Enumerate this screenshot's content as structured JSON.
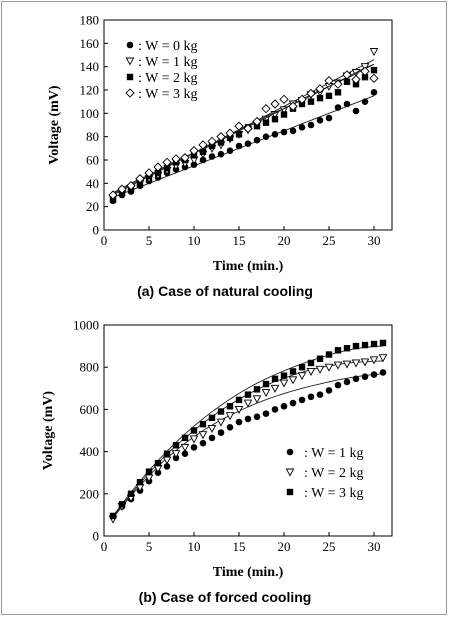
{
  "captions": [
    "(a) Case of natural cooling",
    "(b) Case of forced cooling"
  ],
  "chart_data": [
    {
      "type": "scatter",
      "xlabel": "Time (min.)",
      "ylabel": "Voltage (mV)",
      "xlim": [
        0,
        32
      ],
      "ylim": [
        0,
        180
      ],
      "xticks": [
        0,
        5,
        10,
        15,
        20,
        25,
        30
      ],
      "yticks": [
        0,
        20,
        40,
        60,
        80,
        100,
        120,
        140,
        160,
        180
      ],
      "grid": false,
      "legend_position": "top-left",
      "x": [
        1,
        2,
        3,
        4,
        5,
        6,
        7,
        8,
        9,
        10,
        11,
        12,
        13,
        14,
        15,
        16,
        17,
        18,
        19,
        20,
        21,
        22,
        23,
        24,
        25,
        26,
        27,
        28,
        29,
        30
      ],
      "series": [
        {
          "name": ": W = 0 kg",
          "marker": "filled-circle",
          "values": [
            25,
            30,
            33,
            38,
            42,
            45,
            49,
            52,
            54,
            56,
            60,
            63,
            65,
            68,
            72,
            74,
            77,
            80,
            82,
            84,
            85,
            88,
            90,
            94,
            96,
            105,
            108,
            102,
            110,
            118
          ],
          "fit": [
            28,
            31,
            34,
            37,
            40,
            43,
            46,
            49,
            52,
            55,
            58,
            61,
            64,
            67,
            70,
            73,
            76,
            79,
            82,
            85,
            88,
            91,
            94,
            97,
            100,
            103,
            106,
            109,
            112,
            115
          ]
        },
        {
          "name": ": W = 1 kg",
          "marker": "open-triangle-down",
          "values": [
            27,
            31,
            36,
            40,
            44,
            47,
            51,
            55,
            57,
            60,
            65,
            70,
            73,
            78,
            82,
            86,
            90,
            95,
            99,
            103,
            108,
            111,
            116,
            118,
            123,
            126,
            132,
            135,
            140,
            153
          ],
          "fit": [
            30,
            34,
            38,
            42,
            46,
            50,
            54,
            58,
            62,
            66,
            70,
            74,
            78,
            82,
            86,
            90,
            94,
            98,
            102,
            106,
            110,
            114,
            118,
            122,
            126,
            130,
            134,
            138,
            142,
            146
          ]
        },
        {
          "name": ": W = 2 kg",
          "marker": "filled-square",
          "values": [
            26,
            32,
            35,
            39,
            46,
            49,
            53,
            58,
            60,
            64,
            67,
            72,
            75,
            79,
            82,
            88,
            89,
            92,
            95,
            99,
            104,
            108,
            110,
            113,
            115,
            118,
            127,
            125,
            131,
            137
          ],
          "fit": [
            31,
            35,
            39,
            43,
            46,
            50,
            54,
            58,
            62,
            66,
            69,
            73,
            77,
            81,
            85,
            89,
            92,
            96,
            100,
            104,
            108,
            111,
            115,
            119,
            123,
            127,
            130,
            134,
            138,
            142
          ]
        },
        {
          "name": ": W = 3 kg",
          "marker": "open-diamond",
          "values": [
            30,
            35,
            38,
            44,
            49,
            54,
            58,
            61,
            62,
            68,
            73,
            76,
            80,
            83,
            89,
            87,
            93,
            104,
            108,
            112,
            106,
            112,
            117,
            121,
            128,
            125,
            133,
            129,
            136,
            130
          ],
          "fit": [
            32,
            36,
            40,
            44,
            47,
            51,
            55,
            59,
            63,
            66,
            70,
            74,
            78,
            82,
            85,
            89,
            93,
            97,
            101,
            104,
            108,
            112,
            116,
            120,
            123,
            127,
            131,
            135,
            139,
            142
          ]
        }
      ]
    },
    {
      "type": "scatter",
      "xlabel": "Time (min.)",
      "ylabel": "Voltage (mV)",
      "xlim": [
        0,
        32
      ],
      "ylim": [
        0,
        1000
      ],
      "xticks": [
        0,
        5,
        10,
        15,
        20,
        25,
        30
      ],
      "yticks": [
        0,
        200,
        400,
        600,
        800,
        1000
      ],
      "grid": false,
      "legend_position": "bottom-right",
      "x": [
        1,
        2,
        3,
        4,
        5,
        6,
        7,
        8,
        9,
        10,
        11,
        12,
        13,
        14,
        15,
        16,
        17,
        18,
        19,
        20,
        21,
        22,
        23,
        24,
        25,
        26,
        27,
        28,
        29,
        30,
        31
      ],
      "series": [
        {
          "name": ": W = 1 kg",
          "marker": "filled-circle",
          "values": [
            90,
            140,
            175,
            215,
            260,
            300,
            330,
            370,
            390,
            420,
            440,
            465,
            490,
            515,
            540,
            555,
            565,
            580,
            600,
            615,
            630,
            645,
            660,
            670,
            690,
            715,
            730,
            745,
            755,
            765,
            775
          ],
          "fit": [
            85,
            140,
            190,
            240,
            285,
            330,
            370,
            405,
            440,
            470,
            500,
            525,
            550,
            572,
            592,
            612,
            630,
            646,
            661,
            675,
            688,
            700,
            711,
            721,
            731,
            740,
            748,
            755,
            761,
            765,
            768
          ]
        },
        {
          "name": ": W = 2 kg",
          "marker": "open-triangle-down",
          "values": [
            80,
            140,
            180,
            230,
            275,
            320,
            360,
            390,
            420,
            460,
            480,
            510,
            540,
            570,
            600,
            630,
            650,
            680,
            700,
            725,
            740,
            760,
            780,
            790,
            800,
            810,
            815,
            820,
            825,
            835,
            845
          ],
          "fit": [
            90,
            145,
            198,
            250,
            298,
            345,
            388,
            428,
            465,
            500,
            535,
            566,
            596,
            623,
            648,
            672,
            694,
            714,
            732,
            748,
            763,
            776,
            788,
            798,
            806,
            813,
            819,
            823,
            826,
            828,
            830
          ]
        },
        {
          "name": ": W = 3 kg",
          "marker": "filled-square",
          "values": [
            95,
            150,
            200,
            255,
            305,
            345,
            390,
            430,
            465,
            500,
            530,
            560,
            590,
            615,
            645,
            670,
            695,
            720,
            745,
            760,
            780,
            800,
            820,
            840,
            860,
            880,
            890,
            900,
            905,
            910,
            915
          ],
          "fit": [
            95,
            152,
            207,
            260,
            310,
            358,
            402,
            444,
            484,
            521,
            556,
            589,
            620,
            649,
            676,
            701,
            724,
            745,
            765,
            783,
            800,
            816,
            831,
            845,
            858,
            870,
            880,
            888,
            894,
            898,
            900
          ]
        }
      ]
    }
  ]
}
